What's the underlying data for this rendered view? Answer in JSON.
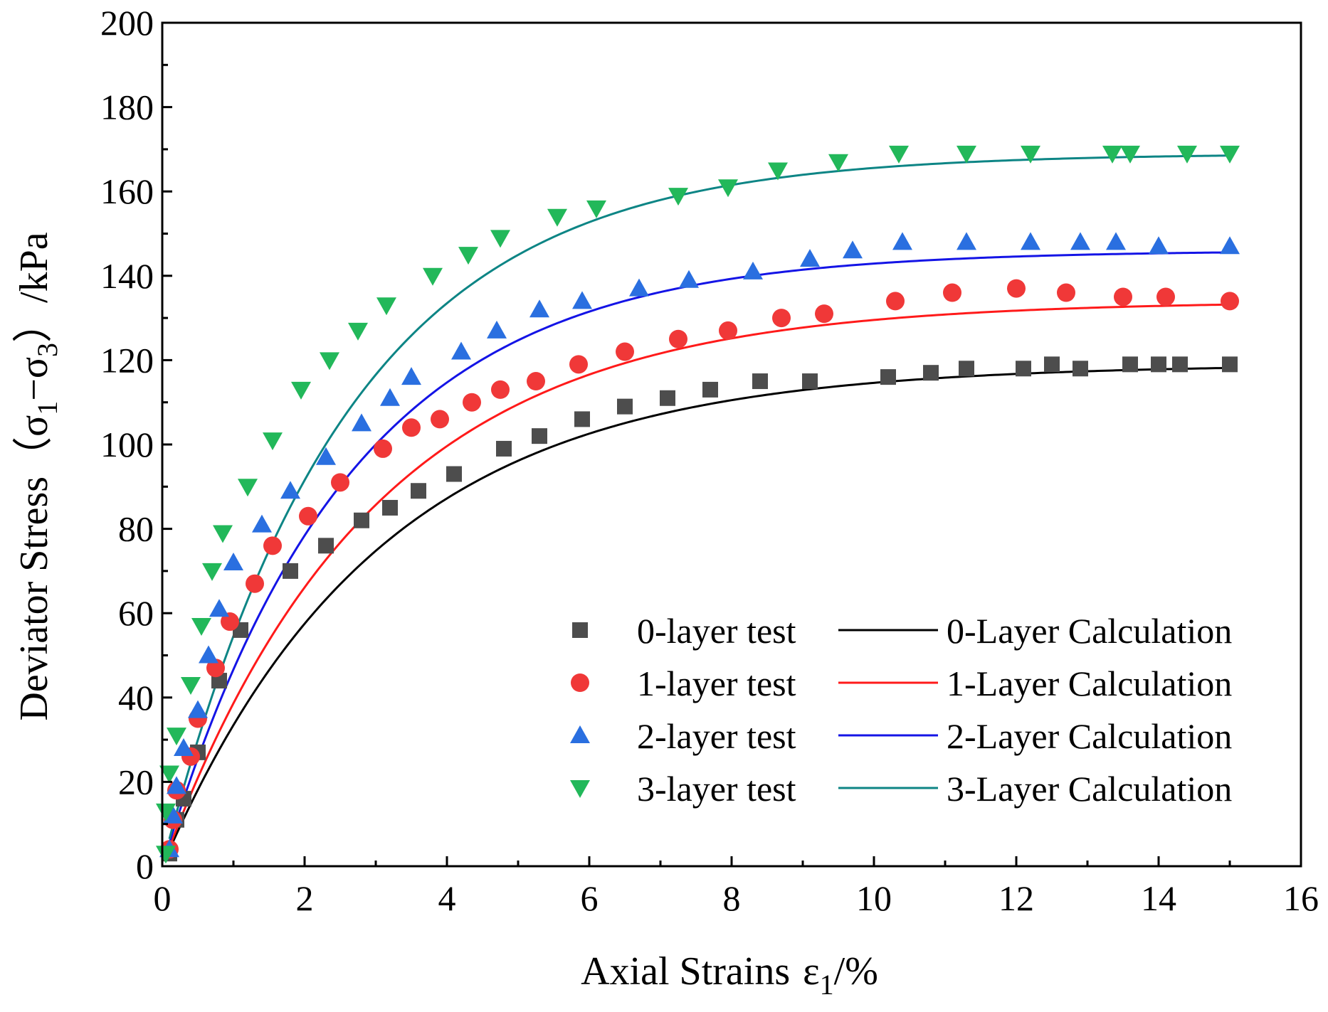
{
  "chart_data": {
    "type": "scatter",
    "xlabel_main": "Axial Strains",
    "xlabel_symbol": "ε",
    "xlabel_sub": "1",
    "xlabel_unit": "/%",
    "ylabel_main": "Deviator Stress",
    "ylabel_open": "（σ",
    "ylabel_sub1": "1",
    "ylabel_dash": "−σ",
    "ylabel_sub3": "3",
    "ylabel_close": "）/kPa",
    "xlim": [
      0,
      16
    ],
    "ylim": [
      0,
      200
    ],
    "xticks": [
      "0",
      "2",
      "4",
      "6",
      "8",
      "10",
      "12",
      "14",
      "16"
    ],
    "yticks": [
      "0",
      "20",
      "40",
      "60",
      "80",
      "100",
      "120",
      "140",
      "160",
      "180",
      "200"
    ],
    "grid": false,
    "legend_position": "bottom-right",
    "series_test": [
      {
        "name": "0-layer test",
        "marker": "square",
        "color": "#4d4d4d",
        "points": [
          [
            0.1,
            3
          ],
          [
            0.2,
            11
          ],
          [
            0.3,
            16
          ],
          [
            0.5,
            27
          ],
          [
            0.8,
            44
          ],
          [
            1.1,
            56
          ],
          [
            1.8,
            70
          ],
          [
            2.3,
            76
          ],
          [
            2.8,
            82
          ],
          [
            3.2,
            85
          ],
          [
            3.6,
            89
          ],
          [
            4.1,
            93
          ],
          [
            4.8,
            99
          ],
          [
            5.3,
            102
          ],
          [
            5.9,
            106
          ],
          [
            6.5,
            109
          ],
          [
            7.1,
            111
          ],
          [
            7.7,
            113
          ],
          [
            8.4,
            115
          ],
          [
            9.1,
            115
          ],
          [
            10.2,
            116
          ],
          [
            10.8,
            117
          ],
          [
            11.3,
            118
          ],
          [
            12.1,
            118
          ],
          [
            12.5,
            119
          ],
          [
            12.9,
            118
          ],
          [
            13.6,
            119
          ],
          [
            14.0,
            119
          ],
          [
            14.3,
            119
          ],
          [
            15.0,
            119
          ]
        ]
      },
      {
        "name": "1-layer test",
        "marker": "circle",
        "color": "#f03838",
        "points": [
          [
            0.1,
            4
          ],
          [
            0.15,
            11
          ],
          [
            0.2,
            18
          ],
          [
            0.4,
            26
          ],
          [
            0.5,
            35
          ],
          [
            0.75,
            47
          ],
          [
            0.95,
            58
          ],
          [
            1.3,
            67
          ],
          [
            1.55,
            76
          ],
          [
            2.05,
            83
          ],
          [
            2.5,
            91
          ],
          [
            3.1,
            99
          ],
          [
            3.5,
            104
          ],
          [
            3.9,
            106
          ],
          [
            4.35,
            110
          ],
          [
            4.75,
            113
          ],
          [
            5.25,
            115
          ],
          [
            5.85,
            119
          ],
          [
            6.5,
            122
          ],
          [
            7.25,
            125
          ],
          [
            7.95,
            127
          ],
          [
            8.7,
            130
          ],
          [
            9.3,
            131
          ],
          [
            10.3,
            134
          ],
          [
            11.1,
            136
          ],
          [
            12.0,
            137
          ],
          [
            12.7,
            136
          ],
          [
            13.5,
            135
          ],
          [
            14.1,
            135
          ],
          [
            15.0,
            134
          ]
        ]
      },
      {
        "name": "2-layer test",
        "marker": "triangle-up",
        "color": "#2a6fe0",
        "points": [
          [
            0.1,
            4
          ],
          [
            0.15,
            12
          ],
          [
            0.2,
            19
          ],
          [
            0.3,
            28
          ],
          [
            0.5,
            37
          ],
          [
            0.65,
            50
          ],
          [
            0.8,
            61
          ],
          [
            1.0,
            72
          ],
          [
            1.4,
            81
          ],
          [
            1.8,
            89
          ],
          [
            2.3,
            97
          ],
          [
            2.8,
            105
          ],
          [
            3.2,
            111
          ],
          [
            3.5,
            116
          ],
          [
            4.2,
            122
          ],
          [
            4.7,
            127
          ],
          [
            5.3,
            132
          ],
          [
            5.9,
            134
          ],
          [
            6.7,
            137
          ],
          [
            7.4,
            139
          ],
          [
            8.3,
            141
          ],
          [
            9.1,
            144
          ],
          [
            9.7,
            146
          ],
          [
            10.4,
            148
          ],
          [
            11.3,
            148
          ],
          [
            12.2,
            148
          ],
          [
            12.9,
            148
          ],
          [
            13.4,
            148
          ],
          [
            14.0,
            147
          ],
          [
            15.0,
            147
          ]
        ]
      },
      {
        "name": "3-layer test",
        "marker": "triangle-down",
        "color": "#22b85a",
        "points": [
          [
            0.05,
            3
          ],
          [
            0.05,
            13
          ],
          [
            0.1,
            22
          ],
          [
            0.2,
            31
          ],
          [
            0.4,
            43
          ],
          [
            0.55,
            57
          ],
          [
            0.7,
            70
          ],
          [
            0.85,
            79
          ],
          [
            1.2,
            90
          ],
          [
            1.55,
            101
          ],
          [
            1.95,
            113
          ],
          [
            2.35,
            120
          ],
          [
            2.75,
            127
          ],
          [
            3.15,
            133
          ],
          [
            3.8,
            140
          ],
          [
            4.3,
            145
          ],
          [
            4.75,
            149
          ],
          [
            5.55,
            154
          ],
          [
            6.1,
            156
          ],
          [
            7.25,
            159
          ],
          [
            7.95,
            161
          ],
          [
            8.65,
            165
          ],
          [
            9.5,
            167
          ],
          [
            10.35,
            169
          ],
          [
            11.3,
            169
          ],
          [
            12.2,
            169
          ],
          [
            13.35,
            169
          ],
          [
            13.6,
            169
          ],
          [
            14.4,
            169
          ],
          [
            15.0,
            169
          ]
        ]
      }
    ],
    "series_calc": [
      {
        "name": "0-Layer Calculation",
        "color": "#000000",
        "ymax": 119,
        "k": 0.33
      },
      {
        "name": "1-Layer Calculation",
        "color": "#ff1a1a",
        "ymax": 134,
        "k": 0.34
      },
      {
        "name": "2-Layer Calculation",
        "color": "#1414e6",
        "ymax": 146,
        "k": 0.385
      },
      {
        "name": "3-Layer Calculation",
        "color": "#0d8585",
        "ymax": 169,
        "k": 0.39
      }
    ]
  }
}
